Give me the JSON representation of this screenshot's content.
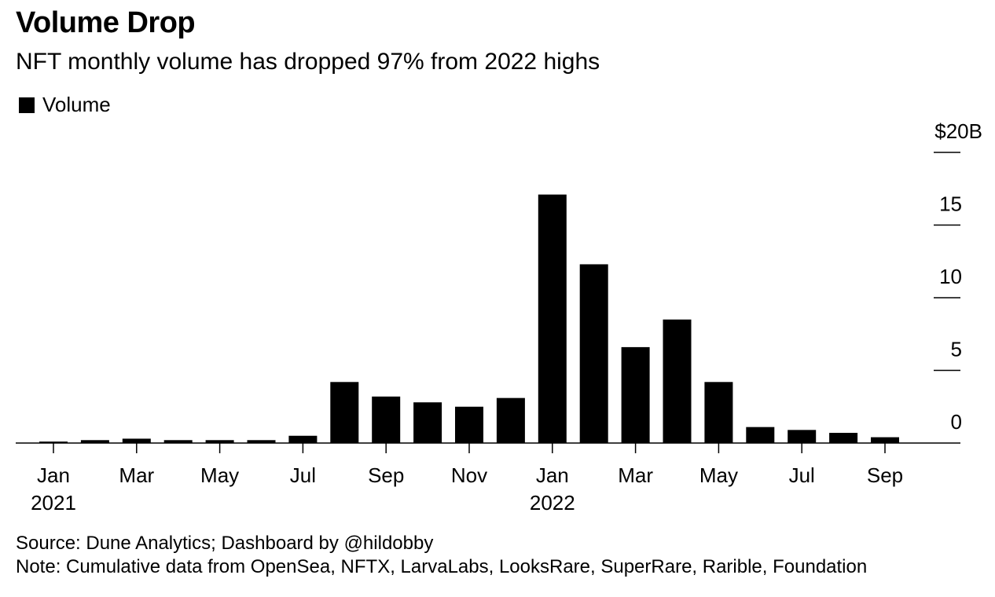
{
  "header": {
    "title": "Volume Drop",
    "subtitle": "NFT monthly volume has dropped 97% from 2022 highs"
  },
  "footer": {
    "source": "Source: Dune Analytics; Dashboard by @hildobby",
    "note": "Note: Cumulative data from OpenSea, NFTX, LarvaLabs, LooksRare, SuperRare, Rarible, Foundation"
  },
  "chart_data": {
    "type": "bar",
    "categories": [
      "Jan 2021",
      "Feb 2021",
      "Mar 2021",
      "Apr 2021",
      "May 2021",
      "Jun 2021",
      "Jul 2021",
      "Aug 2021",
      "Sep 2021",
      "Oct 2021",
      "Nov 2021",
      "Dec 2021",
      "Jan 2022",
      "Feb 2022",
      "Mar 2022",
      "Apr 2022",
      "May 2022",
      "Jun 2022",
      "Jul 2022",
      "Aug 2022",
      "Sep 2022"
    ],
    "series": [
      {
        "name": "Volume",
        "color": "#000000",
        "values": [
          0.1,
          0.2,
          0.3,
          0.2,
          0.2,
          0.2,
          0.5,
          4.2,
          3.2,
          2.8,
          2.5,
          3.1,
          17.1,
          12.3,
          6.6,
          8.5,
          4.2,
          1.1,
          0.9,
          0.7,
          0.4
        ]
      }
    ],
    "x_tick_labels": [
      {
        "index": 0,
        "label": "Jan",
        "year": "2021"
      },
      {
        "index": 2,
        "label": "Mar"
      },
      {
        "index": 4,
        "label": "May"
      },
      {
        "index": 6,
        "label": "Jul"
      },
      {
        "index": 8,
        "label": "Sep"
      },
      {
        "index": 10,
        "label": "Nov"
      },
      {
        "index": 12,
        "label": "Jan",
        "year": "2022"
      },
      {
        "index": 14,
        "label": "Mar"
      },
      {
        "index": 16,
        "label": "May"
      },
      {
        "index": 18,
        "label": "Jul"
      },
      {
        "index": 20,
        "label": "Sep"
      }
    ],
    "y_ticks": [
      {
        "value": 0,
        "label": "0"
      },
      {
        "value": 5,
        "label": "5"
      },
      {
        "value": 10,
        "label": "10"
      },
      {
        "value": 15,
        "label": "15"
      },
      {
        "value": 20,
        "label": "$20B"
      }
    ],
    "ylim": [
      0,
      20
    ],
    "y_axis_side": "right",
    "legend_position": "top-left",
    "grid": false
  }
}
